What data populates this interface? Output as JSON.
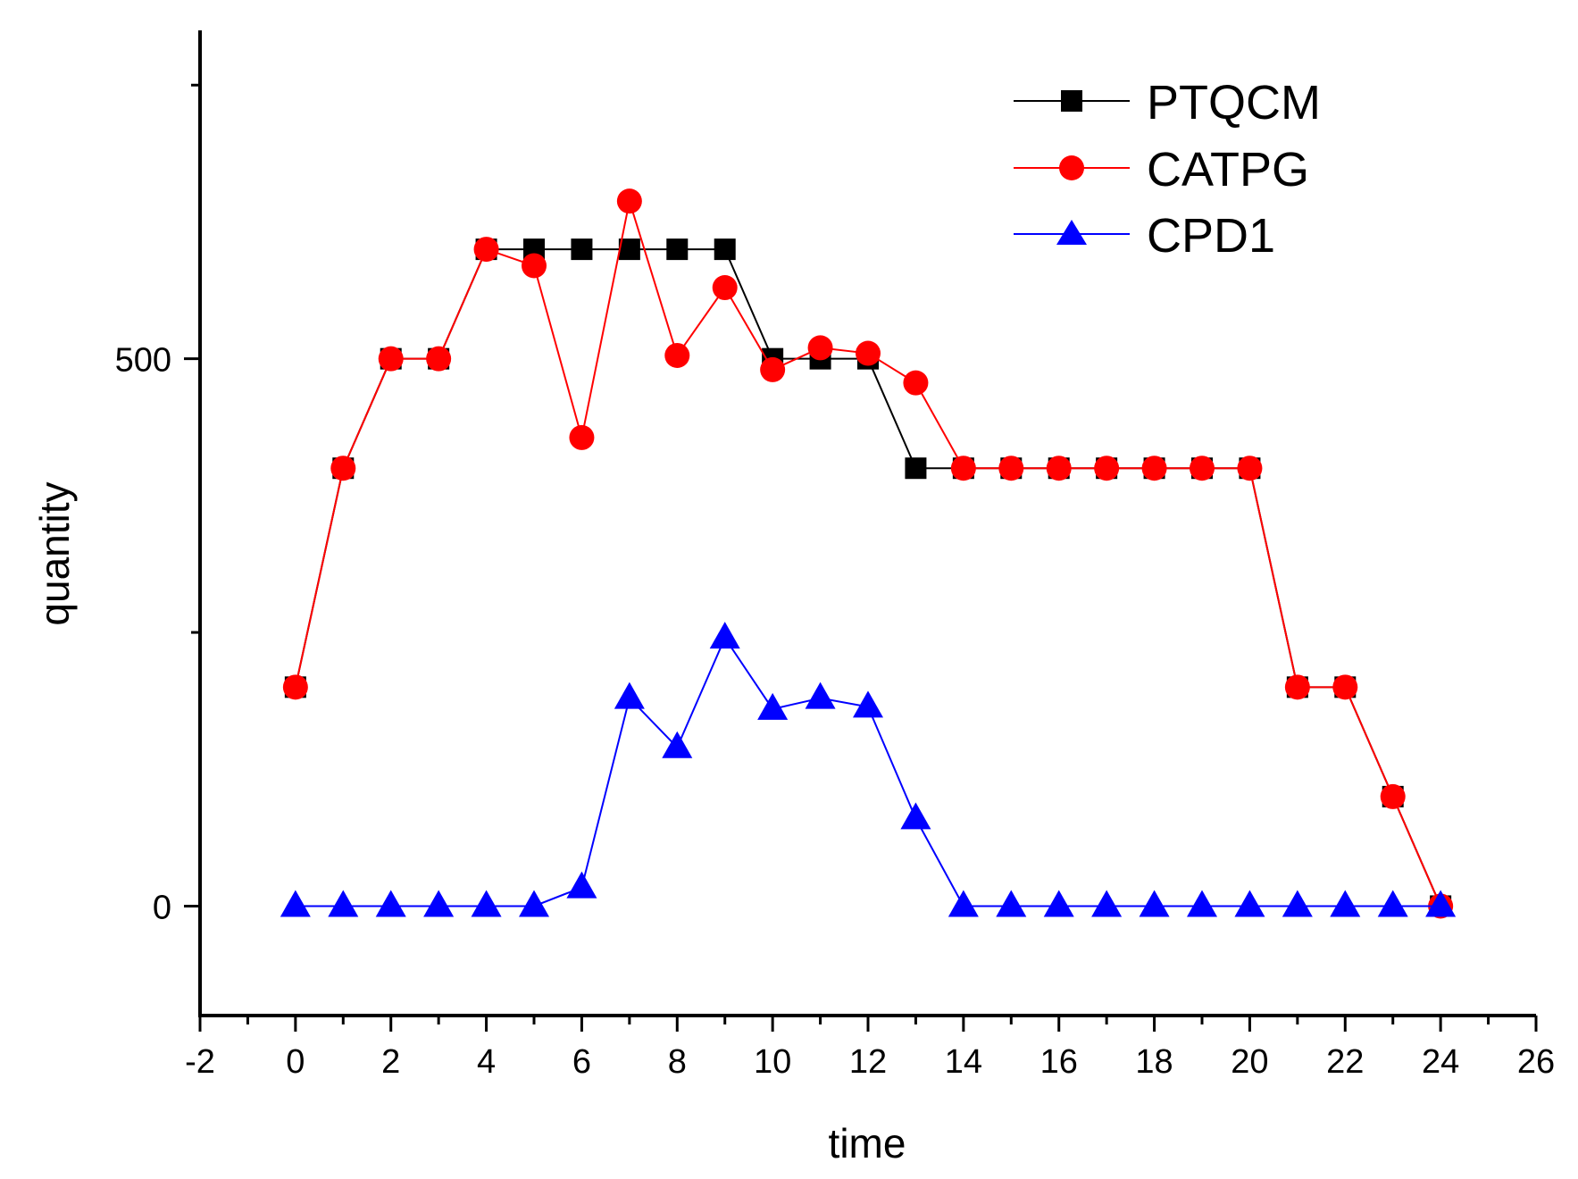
{
  "chart_data": {
    "type": "line",
    "title": "",
    "xlabel": "time",
    "ylabel": "quantity",
    "xlim": [
      -2,
      26
    ],
    "ylim": [
      -100,
      800
    ],
    "x_ticks": [
      -2,
      0,
      2,
      4,
      6,
      8,
      10,
      12,
      14,
      16,
      18,
      20,
      22,
      24,
      26
    ],
    "x_tick_labels": [
      "-2",
      "0",
      "2",
      "4",
      "6",
      "8",
      "10",
      "12",
      "14",
      "16",
      "18",
      "20",
      "22",
      "24",
      "26"
    ],
    "y_major_ticks": [
      0,
      500
    ],
    "y_tick_labels": [
      "0",
      "500"
    ],
    "y_minor_ticks": [
      250,
      750
    ],
    "grid": false,
    "legend": "top-right",
    "x": [
      0,
      1,
      2,
      3,
      4,
      5,
      6,
      7,
      8,
      9,
      10,
      11,
      12,
      13,
      14,
      15,
      16,
      17,
      18,
      19,
      20,
      21,
      22,
      23,
      24
    ],
    "series": [
      {
        "name": "PTQCM",
        "color": "#000000",
        "marker": "square",
        "values": [
          200,
          400,
          500,
          500,
          600,
          600,
          600,
          600,
          600,
          600,
          500,
          500,
          500,
          400,
          400,
          400,
          400,
          400,
          400,
          400,
          400,
          200,
          200,
          100,
          0
        ]
      },
      {
        "name": "CATPG",
        "color": "#ff0000",
        "marker": "circle",
        "values": [
          200,
          400,
          500,
          500,
          600,
          585,
          428,
          644,
          503,
          565,
          490,
          510,
          505,
          478,
          400,
          400,
          400,
          400,
          400,
          400,
          400,
          200,
          200,
          100,
          0
        ]
      },
      {
        "name": "CPD1",
        "color": "#0000ff",
        "marker": "triangle",
        "values": [
          0,
          0,
          0,
          0,
          0,
          0,
          17,
          190,
          145,
          245,
          180,
          190,
          182,
          80,
          0,
          0,
          0,
          0,
          0,
          0,
          0,
          0,
          0,
          0,
          0
        ]
      }
    ]
  }
}
